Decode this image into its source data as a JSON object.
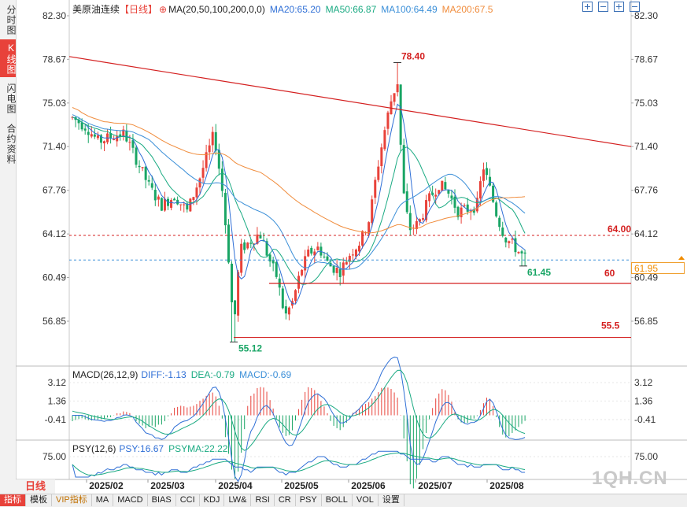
{
  "sidebar": {
    "tabs": [
      {
        "label": "分时图",
        "active": false
      },
      {
        "label": "K线图",
        "active": true
      },
      {
        "label": "闪电图",
        "active": false
      },
      {
        "label": "合约资料",
        "active": false
      }
    ]
  },
  "header": {
    "instrument": "美原油连续",
    "period_tag": "【日线】",
    "ma_label": "MA(20,50,100,200,0,0)",
    "ma20": "MA20:65.20",
    "ma50": "MA50:66.87",
    "ma100": "MA100:64.49",
    "ma200": "MA200:67.5"
  },
  "colors": {
    "up": "#e8423a",
    "down": "#19a565",
    "ma20": "#2f6fd6",
    "ma50": "#1aaa82",
    "ma100": "#3b8fd8",
    "ma200": "#f08c3c",
    "trend": "#d42020",
    "macd_label": "#333333"
  },
  "price_axis": {
    "ticks_left": [
      "82.30",
      "78.67",
      "75.03",
      "71.40",
      "67.76",
      "64.12",
      "60.49",
      "56.85"
    ],
    "ticks_right": [
      "82.30",
      "78.67",
      "75.03",
      "71.40",
      "67.76",
      "64.12",
      "60.49",
      "56.85"
    ],
    "current_price": "61.95"
  },
  "annotations": {
    "high": "78.40",
    "low": "55.12",
    "recent_low": "61.45",
    "level_64": "64.00",
    "level_60": "60",
    "level_555": "55.5"
  },
  "macd": {
    "label": "MACD(26,12,9)",
    "diff": "DIFF:-1.13",
    "dea": "DEA:-0.79",
    "macd": "MACD:-0.69",
    "ticks_left": [
      "3.12",
      "1.36",
      "-0.41"
    ],
    "ticks_right": [
      "3.12",
      "1.36",
      "-0.41"
    ]
  },
  "psy": {
    "label": "PSY(12,6)",
    "psy": "PSY:16.67",
    "psyma": "PSYMA:22.22",
    "tick_left": "75.00",
    "tick_right": "75.00"
  },
  "period_label": "日线",
  "bottom_tabs": [
    "指标",
    "模板",
    "VIP指标",
    "MA",
    "MACD",
    "BIAS",
    "CCI",
    "KDJ",
    "LW&",
    "RSI",
    "CR",
    "PSY",
    "BOLL",
    "VOL",
    "设置"
  ],
  "watermark": "1QH.CN",
  "chart_data": {
    "type": "candlestick",
    "x_labels": [
      "2025/02",
      "2025/03",
      "2025/04",
      "2025/05",
      "2025/06",
      "2025/07",
      "2025/08"
    ],
    "y_range": [
      54.5,
      82.3
    ],
    "key_points": {
      "high": 78.4,
      "low": 55.12,
      "recent_low": 61.45,
      "last_close": 61.95
    },
    "horizontal_levels": [
      64.0,
      60.0,
      55.5
    ],
    "trend_line": {
      "from": [
        0,
        78.9
      ],
      "to": [
        1,
        71.4
      ]
    },
    "ma_values": {
      "MA20": 65.2,
      "MA50": 66.87,
      "MA100": 64.49,
      "MA200": 67.5
    },
    "macd_values": {
      "DIFF": -1.13,
      "DEA": -0.79,
      "MACD": -0.69
    },
    "psy_values": {
      "PSY": 16.67,
      "PSYMA": 22.22
    }
  }
}
